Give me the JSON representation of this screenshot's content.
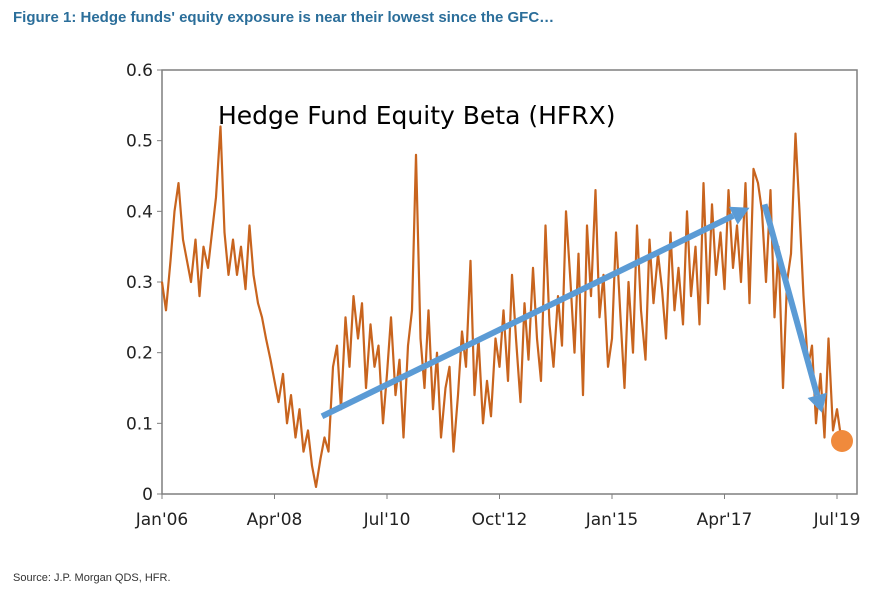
{
  "figure_title": "Figure 1: Hedge funds' equity exposure is near their lowest since the GFC…",
  "source": "Source: J.P. Morgan QDS, HFR.",
  "chart_data": {
    "type": "line",
    "title": "Hedge Fund Equity Beta (HFRX)",
    "xlabel": "",
    "ylabel": "",
    "xlim": [
      2006.0,
      2019.9
    ],
    "ylim": [
      0,
      0.6
    ],
    "y_ticks": [
      0,
      0.1,
      0.2,
      0.3,
      0.4,
      0.5,
      0.6
    ],
    "y_tick_labels": [
      "0",
      "0.1",
      "0.2",
      "0.3",
      "0.4",
      "0.5",
      "0.6"
    ],
    "x_ticks": [
      2006.0,
      2008.25,
      2010.5,
      2012.75,
      2015.0,
      2017.25,
      2019.5
    ],
    "x_tick_labels": [
      "Jan'06",
      "Apr'08",
      "Jul'10",
      "Oct'12",
      "Jan'15",
      "Apr'17",
      "Jul'19"
    ],
    "grid": false,
    "series": [
      {
        "color": "#c8641e",
        "x": [
          2006.0,
          2006.08,
          2006.17,
          2006.25,
          2006.33,
          2006.42,
          2006.5,
          2006.58,
          2006.67,
          2006.75,
          2006.83,
          2006.92,
          2007.0,
          2007.08,
          2007.17,
          2007.25,
          2007.33,
          2007.42,
          2007.5,
          2007.58,
          2007.67,
          2007.75,
          2007.83,
          2007.92,
          2008.0,
          2008.08,
          2008.17,
          2008.25,
          2008.33,
          2008.42,
          2008.5,
          2008.58,
          2008.67,
          2008.75,
          2008.83,
          2008.92,
          2009.0,
          2009.08,
          2009.17,
          2009.25,
          2009.33,
          2009.42,
          2009.5,
          2009.58,
          2009.67,
          2009.75,
          2009.83,
          2009.92,
          2010.0,
          2010.08,
          2010.17,
          2010.25,
          2010.33,
          2010.42,
          2010.5,
          2010.58,
          2010.67,
          2010.75,
          2010.83,
          2010.92,
          2011.0,
          2011.08,
          2011.17,
          2011.25,
          2011.33,
          2011.42,
          2011.5,
          2011.58,
          2011.67,
          2011.75,
          2011.83,
          2011.92,
          2012.0,
          2012.08,
          2012.17,
          2012.25,
          2012.33,
          2012.42,
          2012.5,
          2012.58,
          2012.67,
          2012.75,
          2012.83,
          2012.92,
          2013.0,
          2013.08,
          2013.17,
          2013.25,
          2013.33,
          2013.42,
          2013.5,
          2013.58,
          2013.67,
          2013.75,
          2013.83,
          2013.92,
          2014.0,
          2014.08,
          2014.17,
          2014.25,
          2014.33,
          2014.42,
          2014.5,
          2014.58,
          2014.67,
          2014.75,
          2014.83,
          2014.92,
          2015.0,
          2015.08,
          2015.17,
          2015.25,
          2015.33,
          2015.42,
          2015.5,
          2015.58,
          2015.67,
          2015.75,
          2015.83,
          2015.92,
          2016.0,
          2016.08,
          2016.17,
          2016.25,
          2016.33,
          2016.42,
          2016.5,
          2016.58,
          2016.67,
          2016.75,
          2016.83,
          2016.92,
          2017.0,
          2017.08,
          2017.17,
          2017.25,
          2017.33,
          2017.42,
          2017.5,
          2017.58,
          2017.67,
          2017.75,
          2017.83,
          2017.92,
          2018.0,
          2018.08,
          2018.17,
          2018.25,
          2018.33,
          2018.42,
          2018.5,
          2018.58,
          2018.67,
          2018.75,
          2018.83,
          2018.92,
          2019.0,
          2019.08,
          2019.17,
          2019.25,
          2019.33,
          2019.42,
          2019.5,
          2019.58
        ],
        "y": [
          0.3,
          0.26,
          0.33,
          0.4,
          0.44,
          0.36,
          0.33,
          0.3,
          0.36,
          0.28,
          0.35,
          0.32,
          0.37,
          0.42,
          0.52,
          0.37,
          0.31,
          0.36,
          0.31,
          0.35,
          0.29,
          0.38,
          0.31,
          0.27,
          0.25,
          0.22,
          0.19,
          0.16,
          0.13,
          0.17,
          0.1,
          0.14,
          0.08,
          0.12,
          0.06,
          0.09,
          0.04,
          0.01,
          0.05,
          0.08,
          0.06,
          0.18,
          0.21,
          0.12,
          0.25,
          0.18,
          0.28,
          0.22,
          0.27,
          0.15,
          0.24,
          0.18,
          0.21,
          0.1,
          0.17,
          0.25,
          0.14,
          0.19,
          0.08,
          0.21,
          0.26,
          0.48,
          0.22,
          0.15,
          0.26,
          0.12,
          0.2,
          0.08,
          0.15,
          0.18,
          0.06,
          0.14,
          0.23,
          0.18,
          0.33,
          0.14,
          0.22,
          0.1,
          0.16,
          0.11,
          0.22,
          0.18,
          0.26,
          0.16,
          0.31,
          0.22,
          0.13,
          0.27,
          0.19,
          0.32,
          0.22,
          0.16,
          0.38,
          0.24,
          0.18,
          0.28,
          0.21,
          0.4,
          0.3,
          0.2,
          0.34,
          0.14,
          0.38,
          0.28,
          0.43,
          0.25,
          0.31,
          0.18,
          0.22,
          0.37,
          0.25,
          0.15,
          0.3,
          0.2,
          0.38,
          0.26,
          0.19,
          0.36,
          0.27,
          0.34,
          0.29,
          0.22,
          0.37,
          0.26,
          0.32,
          0.24,
          0.4,
          0.28,
          0.35,
          0.24,
          0.44,
          0.27,
          0.41,
          0.31,
          0.37,
          0.29,
          0.43,
          0.32,
          0.38,
          0.3,
          0.44,
          0.27,
          0.46,
          0.44,
          0.4,
          0.3,
          0.43,
          0.25,
          0.35,
          0.15,
          0.3,
          0.34,
          0.51,
          0.4,
          0.28,
          0.18,
          0.21,
          0.1,
          0.17,
          0.08,
          0.22,
          0.09,
          0.12,
          0.08
        ]
      }
    ],
    "arrows": [
      {
        "from": [
          2009.2,
          0.11
        ],
        "to": [
          2017.75,
          0.405
        ],
        "color": "#5b9bd5"
      },
      {
        "from": [
          2018.05,
          0.41
        ],
        "to": [
          2019.2,
          0.115
        ],
        "color": "#5b9bd5"
      }
    ],
    "highlight_point": {
      "x": 2019.6,
      "y": 0.075,
      "color": "#f08a3c"
    }
  }
}
